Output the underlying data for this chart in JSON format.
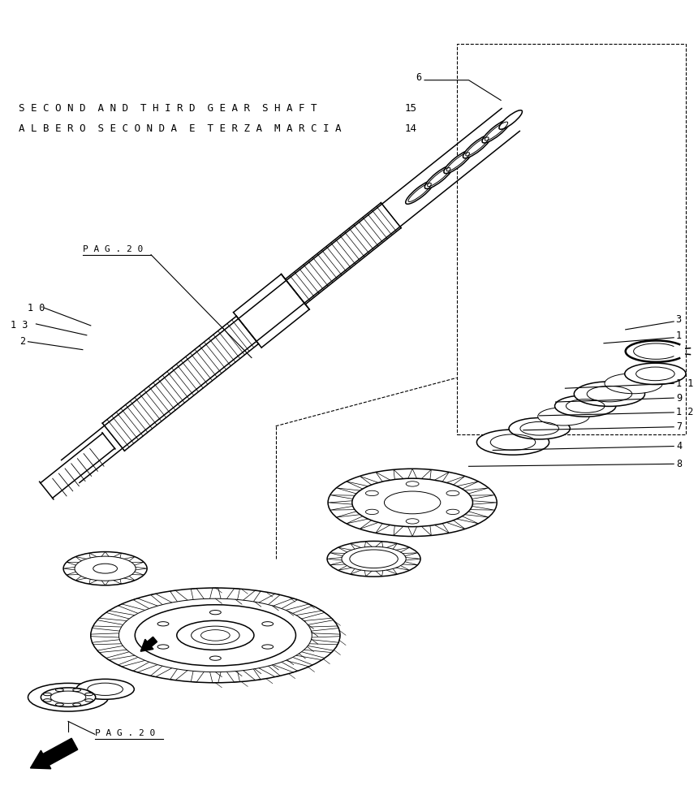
{
  "bg_color": "#ffffff",
  "line_color": "#000000",
  "fig_width": 8.6,
  "fig_height": 10.0,
  "dpi": 100,
  "title_line1": "S E C O N D  A N D  T H I R D  G E A R  S H A F T",
  "title_line2": "A L B E R O  S E C O N D A  E  T E R Z A  M A R C I A",
  "title_num1": "15",
  "title_num2": "14",
  "pag20_top": "P A G . 2 0",
  "pag20_bottom": "P A G . 2 0",
  "part_numbers_right": [
    "1 1",
    "9",
    "1 2",
    "7",
    "4",
    "8"
  ],
  "part_numbers_left": [
    "1 0",
    "1 3",
    "2"
  ],
  "part_6": "6",
  "part_3": "3",
  "part_1": "1"
}
